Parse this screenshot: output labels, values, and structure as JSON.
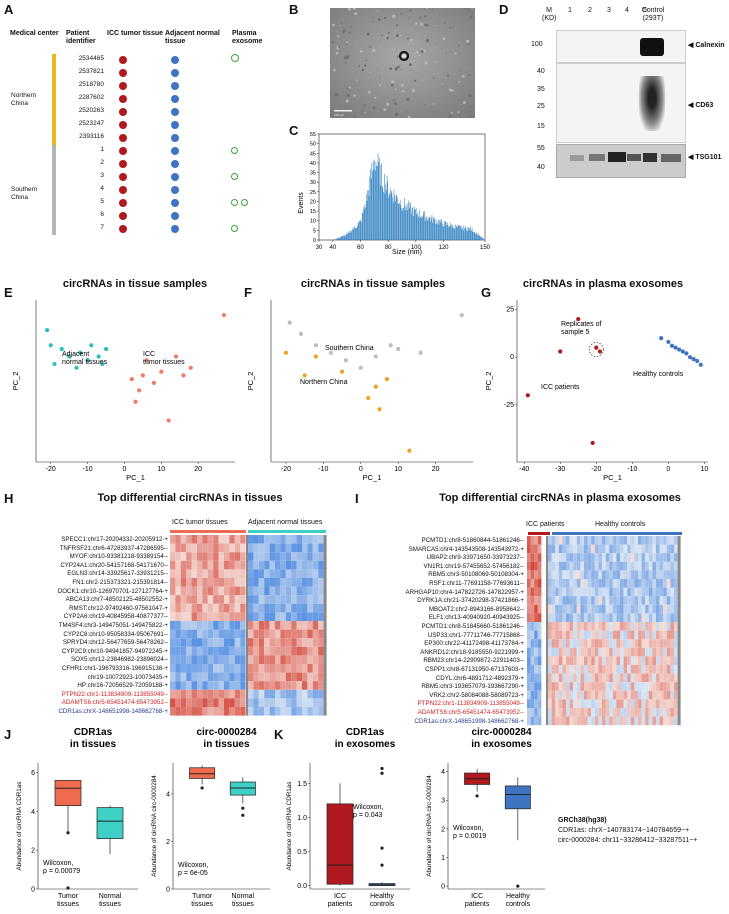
{
  "panels": {
    "A": "A",
    "B": "B",
    "C": "C",
    "D": "D",
    "E": "E",
    "F": "F",
    "G": "G",
    "H": "H",
    "I": "I",
    "J": "J",
    "K": "K"
  },
  "panelA": {
    "headers": {
      "center": "Medical center",
      "patient": "Patient identifier",
      "icc": "ICC tumor tissue",
      "adj": "Adjacent normal tissue",
      "plasma": "Plasma exosome"
    },
    "north_label": "Northern China",
    "south_label": "Southern China",
    "north_ids": [
      "2534465",
      "2537821",
      "2518780",
      "2287602",
      "2520263",
      "2523247",
      "2393116"
    ],
    "south_ids": [
      "1",
      "2",
      "3",
      "4",
      "5",
      "6",
      "7"
    ],
    "colors": {
      "north": "#f0b323",
      "south": "#b5b5b5",
      "icc": "#b0191e",
      "adj": "#3f74c1",
      "plasma": "#3aa535"
    }
  },
  "panelB": {
    "scale_left": "100 nm",
    "scale_right": "-"
  },
  "panelC": {
    "xlabel": "Size (nm)",
    "ylabel": "Events",
    "xticks": [
      "30",
      "40",
      "60",
      "80",
      "100",
      "120",
      "150"
    ],
    "yticks": [
      "0",
      "5",
      "10",
      "15",
      "20",
      "25",
      "30",
      "35",
      "40",
      "45",
      "50",
      "55"
    ]
  },
  "panelD": {
    "lanes": [
      "M (KD)",
      "1",
      "2",
      "3",
      "4",
      "5",
      "Control (293T)"
    ],
    "m_label": "M",
    "kd_label": "(KD)",
    "ctrl_label": "Control",
    "ctrl_sub": "(293T)",
    "markers": [
      "100",
      "40",
      "35",
      "25",
      "15",
      "55",
      "40"
    ],
    "bands": [
      "Calnexin",
      "CD63",
      "TSG101"
    ]
  },
  "panelE": {
    "title": "circRNAs in tissue samples",
    "labels": [
      "Adjacent normal tissues",
      "ICC tumor tissues"
    ],
    "xlabel": "PC_1",
    "ylabel": "PC_2",
    "xticks": [
      "-20",
      "-10",
      "0",
      "10",
      "20"
    ]
  },
  "panelF": {
    "title": "circRNAs in tissue samples",
    "labels": [
      "Southern China",
      "Northern China"
    ],
    "xlabel": "PC_1",
    "ylabel": "PC_2",
    "xticks": [
      "-20",
      "-10",
      "0",
      "10",
      "20"
    ]
  },
  "panelG": {
    "title": "circRNAs in plasma exosomes",
    "labels": [
      "Replicates of sample 5",
      "ICC patients",
      "Healthy controls"
    ],
    "xlabel": "PC_1",
    "ylabel": "PC_2",
    "xticks": [
      "-40",
      "-30",
      "-20",
      "-10",
      "0",
      "10"
    ],
    "yticks": [
      "25",
      "0",
      "-25"
    ]
  },
  "panelH": {
    "title": "Top differential circRNAs in tissues",
    "groups": [
      "ICC tumor tissues",
      "Adjacent normal tissues"
    ],
    "genes": [
      "SPECC1:chr17-20204332-20205912-+",
      "TNFRSF21:chr6-47283937-47286595--",
      "MYOF:chr10-93381218-93389154--",
      "CYP24A1:chr20-54157168-54171670--",
      "EGLN3:chr14-33925617-33931215--",
      "FN1:chr2-215373321-215391814--",
      "DOCK1:chr10-126970701-127127764-+",
      "ABCA13:chr7-48502125-48502552-+",
      "RMST:chr12-97492460-97561047-+",
      "CYP2A6:chr19-40845958-40877377--",
      "TM4SF4:chr3-149475051-149475822-+",
      "CYP2C8:chr10-95058334-95067691--",
      "SPRYD4:chr12-56477659-56478262--",
      "CYP2C9:chr10-94941857-94972245-+",
      "SOX5:chr12-23846982-23896024--",
      "CFHR1:chr1-196793316-196915138-+",
      "chr19-10072923-10073435-+",
      "HP:chr16-72056529-72059188-+",
      "PTPN22:chr1-113834909-113855049--",
      "ADAMTS6:chr5-65451474-65473952--",
      "CDR1as:chrX-148651998-148662768-+"
    ]
  },
  "panelI": {
    "title": "Top differential circRNAs in plasma exosomes",
    "groups": [
      "ICC patients",
      "Healthy controls"
    ],
    "genes": [
      "PCMTD1:chr8-51860844-51861246--",
      "SMARCA5:chr4-143543508-143543972-+",
      "UBAP2:chr9-33971650-33973237--",
      "VN1R1:chr19-57455652-57456182--",
      "RBM5:chr3-50108069-50108304-+",
      "RSF1:chr11-77691158-77693611--",
      "ARHGAP10:chr4-147822726-147822957-+",
      "DYRK1A:chr21-37420298-37421866-+",
      "MBOAT2:chr2-8943166-8958642--",
      "ELF1:chr13-40940920-40943925--",
      "PCMTD1:chr8-51845660-51861246--",
      "USP33:chr1-77711746-77715868--",
      "EP300:chr22-41172498-41173784-+",
      "ANKRD12:chr18-9185550-9221999-+",
      "RBM23:chr14-22909872-22911403--",
      "CSPP1:chr8-67131950-67137603-+",
      "CDYL:chr6-4891712-4892379-+",
      "RBM5:chr3-193657079-193667290-+",
      "VRK2:chr2-58084088-58089723-+",
      "PTPN22:chr1-113834909-113855049--",
      "ADAMTS6:chr5-65451474-65473952--",
      "CDR1as:chrX-148651998-148662768-+"
    ]
  },
  "panelJ": {
    "left": {
      "title": "CDR1as",
      "title2": "in tissues",
      "ylabel": "Abundance of circRNA CDR1as",
      "groups": [
        "Tumor tissues",
        "Normal tissues"
      ],
      "stat": "Wilcoxon,",
      "p": "p = 0.00079",
      "yticks": [
        "0",
        "2",
        "4",
        "6"
      ]
    },
    "right": {
      "title": "circ-0000284",
      "title2": "in tissues",
      "ylabel": "Abundance of circRNA circ-0000284",
      "groups": [
        "Tumor tissues",
        "Normal tissues"
      ],
      "stat": "Wilcoxon,",
      "p": "p = 6e-05",
      "yticks": [
        "0",
        "2",
        "4"
      ]
    }
  },
  "panelK": {
    "left": {
      "title": "CDR1as",
      "title2": "in exosomes",
      "ylabel": "Abundance of circRNA CDR1as",
      "groups": [
        "ICC patients",
        "Healthy controls"
      ],
      "stat": "Wilcoxon,",
      "p": "p = 0.043",
      "yticks": [
        "0.0",
        "0.5",
        "1.0",
        "1.5"
      ]
    },
    "right": {
      "title": "circ-0000284",
      "title2": "in exosomes",
      "ylabel": "Abundance of circRNA circ-0000284",
      "groups": [
        "ICC patients",
        "Healthy controls"
      ],
      "stat": "Wilcoxon,",
      "p": "p = 0.0019",
      "yticks": [
        "0",
        "1",
        "2",
        "3",
        "4"
      ]
    }
  },
  "legend": {
    "title": "GRCh38(hg38)",
    "line1": "CDR1as: chrX−140783174−140784659−+",
    "line2": "circ-0000284: chr11−33286412−33287511−+"
  },
  "chart_data": [
    {
      "type": "bar",
      "title": "",
      "xlabel": "Size (nm)",
      "ylabel": "Events",
      "xlim": [
        30,
        150
      ],
      "ylim": [
        0,
        55
      ],
      "x": [
        40,
        50,
        60,
        65,
        70,
        75,
        80,
        90,
        100,
        110,
        120,
        130,
        140,
        150
      ],
      "values": [
        0,
        3,
        10,
        25,
        45,
        35,
        28,
        20,
        15,
        12,
        9,
        7,
        6,
        0
      ]
    },
    {
      "type": "scatter",
      "title": "circRNAs in tissue samples",
      "xlabel": "PC_1",
      "ylabel": "PC_2",
      "series": [
        {
          "name": "Adjacent normal tissues",
          "x": [
            -21,
            -20,
            -19,
            -17,
            -15,
            -13,
            -12,
            -10,
            -9,
            -7,
            -6,
            -5
          ],
          "y": [
            10,
            6,
            1,
            5,
            3,
            0,
            4,
            2,
            6,
            3,
            1,
            5
          ]
        },
        {
          "name": "ICC tumor tissues",
          "x": [
            2,
            3,
            4,
            5,
            6,
            8,
            10,
            12,
            14,
            16,
            18,
            27
          ],
          "y": [
            -3,
            -9,
            -6,
            -2,
            2,
            -4,
            -1,
            -14,
            3,
            -2,
            0,
            14
          ]
        }
      ]
    },
    {
      "type": "scatter",
      "title": "circRNAs in tissue samples",
      "xlabel": "PC_1",
      "ylabel": "PC_2",
      "series": [
        {
          "name": "Southern China",
          "x": [
            -19,
            -16,
            -12,
            -8,
            -4,
            0,
            4,
            8,
            10,
            16,
            27
          ],
          "y": [
            12,
            9,
            6,
            4,
            2,
            0,
            3,
            6,
            5,
            4,
            14
          ]
        },
        {
          "name": "Northern China",
          "x": [
            -20,
            -15,
            -12,
            -5,
            2,
            4,
            5,
            7,
            13
          ],
          "y": [
            4,
            -2,
            3,
            -1,
            -8,
            -5,
            -11,
            -3,
            -22
          ]
        }
      ]
    },
    {
      "type": "scatter",
      "title": "circRNAs in plasma exosomes",
      "xlabel": "PC_1",
      "ylabel": "PC_2",
      "series": [
        {
          "name": "ICC patients",
          "x": [
            -39,
            -30,
            -25,
            -21,
            -20,
            -19
          ],
          "y": [
            -20,
            3,
            20,
            -45,
            5,
            3
          ]
        },
        {
          "name": "Healthy controls",
          "x": [
            -2,
            0,
            1,
            2,
            3,
            4,
            5,
            6,
            7,
            8,
            9
          ],
          "y": [
            10,
            8,
            6,
            5,
            4,
            3,
            2,
            0,
            -1,
            -2,
            -4
          ]
        }
      ]
    },
    {
      "type": "box",
      "title": "CDR1as in tissues",
      "groups": [
        "Tumor tissues",
        "Normal tissues"
      ],
      "ylim": [
        0,
        6.5
      ],
      "boxes": [
        {
          "q1": 4.3,
          "median": 5.2,
          "q3": 5.6,
          "min": 3.0,
          "max": 5.6
        },
        {
          "q1": 2.6,
          "median": 3.5,
          "q3": 4.2,
          "min": 1.8,
          "max": 4.3
        }
      ]
    },
    {
      "type": "box",
      "title": "circ-0000284 in tissues",
      "groups": [
        "Tumor tissues",
        "Normal tissues"
      ],
      "ylim": [
        0,
        5.3
      ],
      "boxes": [
        {
          "q1": 4.65,
          "median": 4.85,
          "q3": 5.1,
          "min": 4.4,
          "max": 5.2
        },
        {
          "q1": 3.95,
          "median": 4.25,
          "q3": 4.5,
          "min": 3.6,
          "max": 4.7
        }
      ]
    },
    {
      "type": "box",
      "title": "CDR1as in exosomes",
      "groups": [
        "ICC patients",
        "Healthy controls"
      ],
      "ylim": [
        -0.05,
        1.8
      ],
      "boxes": [
        {
          "q1": 0.02,
          "median": 0.3,
          "q3": 1.2,
          "min": 0.0,
          "max": 1.5
        },
        {
          "q1": 0.0,
          "median": 0.01,
          "q3": 0.03,
          "min": 0.0,
          "max": 0.05
        }
      ]
    },
    {
      "type": "box",
      "title": "circ-0000284 in exosomes",
      "groups": [
        "ICC patients",
        "Healthy controls"
      ],
      "ylim": [
        -0.1,
        4.3
      ],
      "boxes": [
        {
          "q1": 3.55,
          "median": 3.75,
          "q3": 3.95,
          "min": 3.3,
          "max": 4.1
        },
        {
          "q1": 2.7,
          "median": 3.2,
          "q3": 3.5,
          "min": 1.6,
          "max": 3.8
        }
      ]
    }
  ]
}
